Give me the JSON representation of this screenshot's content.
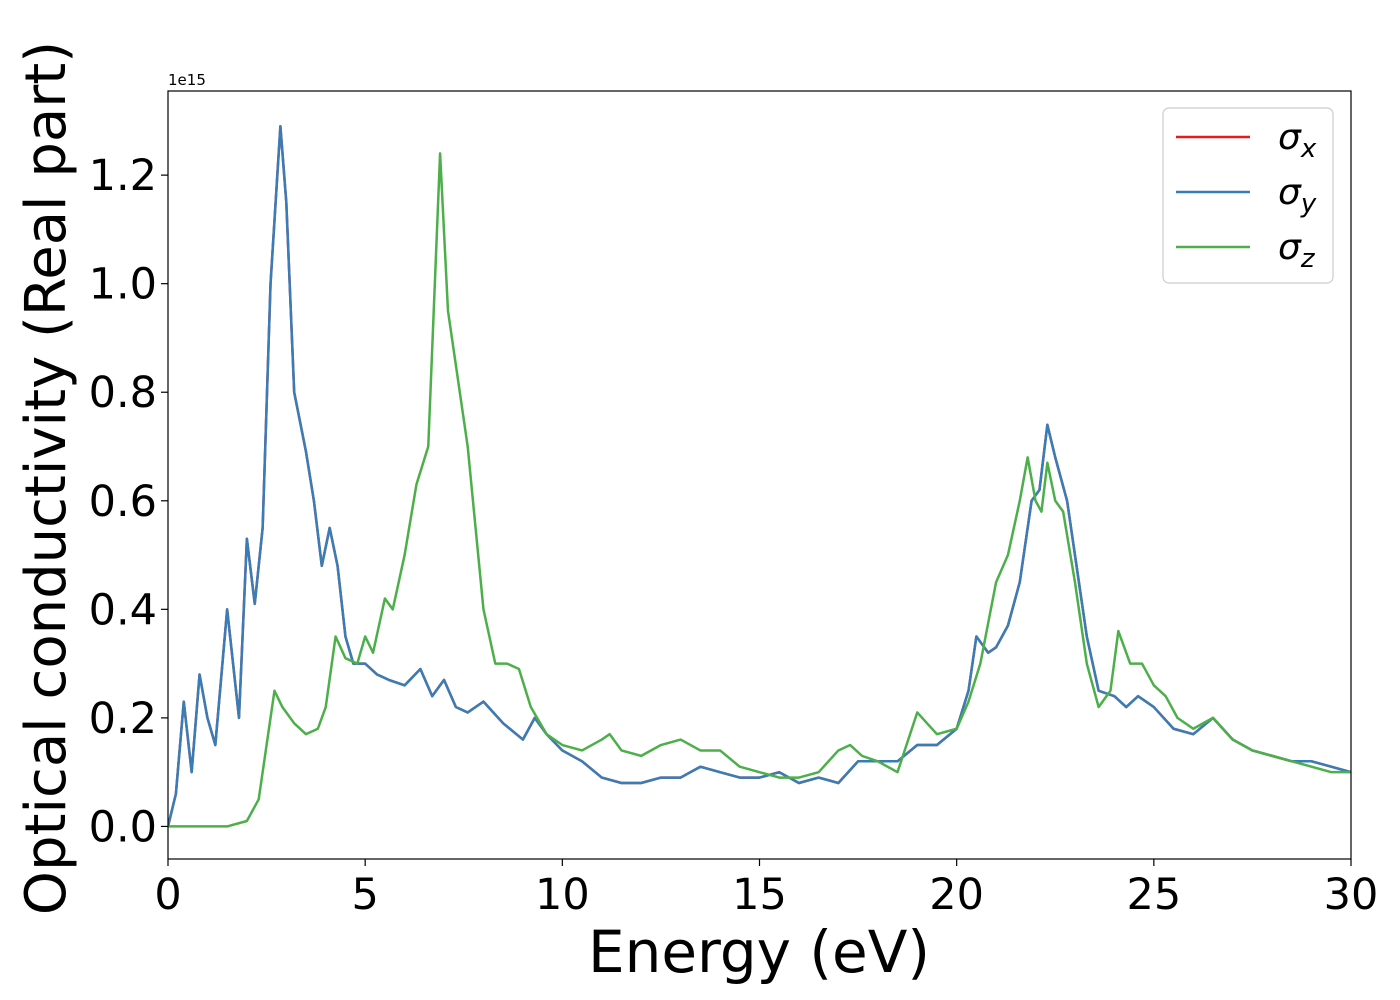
{
  "chart_data": {
    "type": "line",
    "title": "",
    "xlabel": "Energy (eV)",
    "ylabel": "Optical conductivity (Real part)",
    "y_offset_text": "1e15",
    "y_scale_factor": 1000000000000000.0,
    "xlim": [
      0,
      30
    ],
    "ylim": [
      -0.06,
      1.355
    ],
    "xticks": [
      0,
      5,
      10,
      15,
      20,
      25,
      30
    ],
    "xtick_labels": [
      "0",
      "5",
      "10",
      "15",
      "20",
      "25",
      "30"
    ],
    "yticks": [
      0.0,
      0.2,
      0.4,
      0.6,
      0.8,
      1.0,
      1.2
    ],
    "ytick_labels": [
      "0.0",
      "0.2",
      "0.4",
      "0.6",
      "0.8",
      "1.0",
      "1.2"
    ],
    "grid": false,
    "legend_position": "top-right",
    "legend": [
      {
        "base": "σ",
        "sub": "x",
        "color": "#e41a1c"
      },
      {
        "base": "σ",
        "sub": "y",
        "color": "#377eb8"
      },
      {
        "base": "σ",
        "sub": "z",
        "color": "#4daf4a"
      }
    ],
    "series": [
      {
        "name": "σx",
        "color": "#e41a1c",
        "x": [
          0,
          0.2,
          0.4,
          0.6,
          0.8,
          1.0,
          1.2,
          1.5,
          1.8,
          2.0,
          2.2,
          2.4,
          2.6,
          2.85,
          3.0,
          3.2,
          3.5,
          3.7,
          3.9,
          4.1,
          4.3,
          4.5,
          4.7,
          5.0,
          5.3,
          5.6,
          6.0,
          6.4,
          6.7,
          7.0,
          7.3,
          7.6,
          8.0,
          8.5,
          9.0,
          9.3,
          9.6,
          10.0,
          10.5,
          11.0,
          11.5,
          12.0,
          12.5,
          13.0,
          13.5,
          14.0,
          14.5,
          15.0,
          15.5,
          16.0,
          16.5,
          17.0,
          17.5,
          18.0,
          18.5,
          19.0,
          19.5,
          20.0,
          20.3,
          20.5,
          20.8,
          21.0,
          21.3,
          21.6,
          21.9,
          22.1,
          22.3,
          22.5,
          22.8,
          23.0,
          23.3,
          23.6,
          24.0,
          24.3,
          24.6,
          25.0,
          25.5,
          26.0,
          26.5,
          27.0,
          27.5,
          28.0,
          28.5,
          29.0,
          29.5,
          30.0
        ],
        "y": [
          0.0,
          0.06,
          0.23,
          0.1,
          0.28,
          0.2,
          0.15,
          0.4,
          0.2,
          0.53,
          0.41,
          0.55,
          1.0,
          1.29,
          1.15,
          0.8,
          0.69,
          0.6,
          0.48,
          0.55,
          0.48,
          0.35,
          0.3,
          0.3,
          0.28,
          0.27,
          0.26,
          0.29,
          0.24,
          0.27,
          0.22,
          0.21,
          0.23,
          0.19,
          0.16,
          0.2,
          0.17,
          0.14,
          0.12,
          0.09,
          0.08,
          0.08,
          0.09,
          0.09,
          0.11,
          0.1,
          0.09,
          0.09,
          0.1,
          0.08,
          0.09,
          0.08,
          0.12,
          0.12,
          0.12,
          0.15,
          0.15,
          0.18,
          0.25,
          0.35,
          0.32,
          0.33,
          0.37,
          0.45,
          0.6,
          0.62,
          0.74,
          0.68,
          0.6,
          0.5,
          0.35,
          0.25,
          0.24,
          0.22,
          0.24,
          0.22,
          0.18,
          0.17,
          0.2,
          0.16,
          0.14,
          0.13,
          0.12,
          0.12,
          0.11,
          0.1
        ]
      },
      {
        "name": "σy",
        "color": "#377eb8",
        "x": [
          0,
          0.2,
          0.4,
          0.6,
          0.8,
          1.0,
          1.2,
          1.5,
          1.8,
          2.0,
          2.2,
          2.4,
          2.6,
          2.85,
          3.0,
          3.2,
          3.5,
          3.7,
          3.9,
          4.1,
          4.3,
          4.5,
          4.7,
          5.0,
          5.3,
          5.6,
          6.0,
          6.4,
          6.7,
          7.0,
          7.3,
          7.6,
          8.0,
          8.5,
          9.0,
          9.3,
          9.6,
          10.0,
          10.5,
          11.0,
          11.5,
          12.0,
          12.5,
          13.0,
          13.5,
          14.0,
          14.5,
          15.0,
          15.5,
          16.0,
          16.5,
          17.0,
          17.5,
          18.0,
          18.5,
          19.0,
          19.5,
          20.0,
          20.3,
          20.5,
          20.8,
          21.0,
          21.3,
          21.6,
          21.9,
          22.1,
          22.3,
          22.5,
          22.8,
          23.0,
          23.3,
          23.6,
          24.0,
          24.3,
          24.6,
          25.0,
          25.5,
          26.0,
          26.5,
          27.0,
          27.5,
          28.0,
          28.5,
          29.0,
          29.5,
          30.0
        ],
        "y": [
          0.0,
          0.06,
          0.23,
          0.1,
          0.28,
          0.2,
          0.15,
          0.4,
          0.2,
          0.53,
          0.41,
          0.55,
          1.0,
          1.29,
          1.15,
          0.8,
          0.69,
          0.6,
          0.48,
          0.55,
          0.48,
          0.35,
          0.3,
          0.3,
          0.28,
          0.27,
          0.26,
          0.29,
          0.24,
          0.27,
          0.22,
          0.21,
          0.23,
          0.19,
          0.16,
          0.2,
          0.17,
          0.14,
          0.12,
          0.09,
          0.08,
          0.08,
          0.09,
          0.09,
          0.11,
          0.1,
          0.09,
          0.09,
          0.1,
          0.08,
          0.09,
          0.08,
          0.12,
          0.12,
          0.12,
          0.15,
          0.15,
          0.18,
          0.25,
          0.35,
          0.32,
          0.33,
          0.37,
          0.45,
          0.6,
          0.62,
          0.74,
          0.68,
          0.6,
          0.5,
          0.35,
          0.25,
          0.24,
          0.22,
          0.24,
          0.22,
          0.18,
          0.17,
          0.2,
          0.16,
          0.14,
          0.13,
          0.12,
          0.12,
          0.11,
          0.1
        ]
      },
      {
        "name": "σz",
        "color": "#4daf4a",
        "x": [
          0,
          1.0,
          1.5,
          2.0,
          2.3,
          2.5,
          2.7,
          2.9,
          3.2,
          3.5,
          3.8,
          4.0,
          4.25,
          4.5,
          4.8,
          5.0,
          5.2,
          5.5,
          5.7,
          6.0,
          6.3,
          6.6,
          6.9,
          7.1,
          7.3,
          7.6,
          8.0,
          8.3,
          8.6,
          8.9,
          9.2,
          9.6,
          10.0,
          10.5,
          11.0,
          11.2,
          11.5,
          12.0,
          12.5,
          13.0,
          13.5,
          14.0,
          14.5,
          15.0,
          15.5,
          16.0,
          16.5,
          17.0,
          17.3,
          17.6,
          18.0,
          18.5,
          19.0,
          19.5,
          20.0,
          20.3,
          20.6,
          21.0,
          21.3,
          21.6,
          21.8,
          22.0,
          22.15,
          22.3,
          22.5,
          22.7,
          23.0,
          23.3,
          23.6,
          23.9,
          24.1,
          24.4,
          24.7,
          25.0,
          25.3,
          25.6,
          26.0,
          26.5,
          27.0,
          27.5,
          28.0,
          28.5,
          29.0,
          29.5,
          30.0
        ],
        "y": [
          0.0,
          0.0,
          0.0,
          0.01,
          0.05,
          0.15,
          0.25,
          0.22,
          0.19,
          0.17,
          0.18,
          0.22,
          0.35,
          0.31,
          0.3,
          0.35,
          0.32,
          0.42,
          0.4,
          0.5,
          0.63,
          0.7,
          1.24,
          0.95,
          0.85,
          0.7,
          0.4,
          0.3,
          0.3,
          0.29,
          0.22,
          0.17,
          0.15,
          0.14,
          0.16,
          0.17,
          0.14,
          0.13,
          0.15,
          0.16,
          0.14,
          0.14,
          0.11,
          0.1,
          0.09,
          0.09,
          0.1,
          0.14,
          0.15,
          0.13,
          0.12,
          0.1,
          0.21,
          0.17,
          0.18,
          0.23,
          0.3,
          0.45,
          0.5,
          0.6,
          0.68,
          0.6,
          0.58,
          0.67,
          0.6,
          0.58,
          0.45,
          0.3,
          0.22,
          0.25,
          0.36,
          0.3,
          0.3,
          0.26,
          0.24,
          0.2,
          0.18,
          0.2,
          0.16,
          0.14,
          0.13,
          0.12,
          0.11,
          0.1,
          0.1
        ]
      }
    ]
  }
}
